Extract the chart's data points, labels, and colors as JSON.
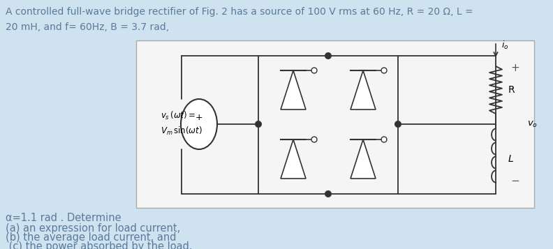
{
  "background_color": "#cfe2f0",
  "panel_color": "#f5f5f5",
  "title_line1": "A controlled full-wave bridge rectifier of Fig. 2 has a source of 100 V rms at 60 Hz, R = 20 Ω, L =",
  "title_line2": "20 mH, and f= 60Hz, B = 3.7 rad,",
  "line3": "α=1.1 rad . Determine",
  "line4": "(a) an expression for load current,",
  "line5": "(b) the average load current, and",
  "line6": " (c) the power absorbed by the load.",
  "text_color": "#5a7a9a",
  "font_size_title": 10.0,
  "font_size_body": 10.5
}
